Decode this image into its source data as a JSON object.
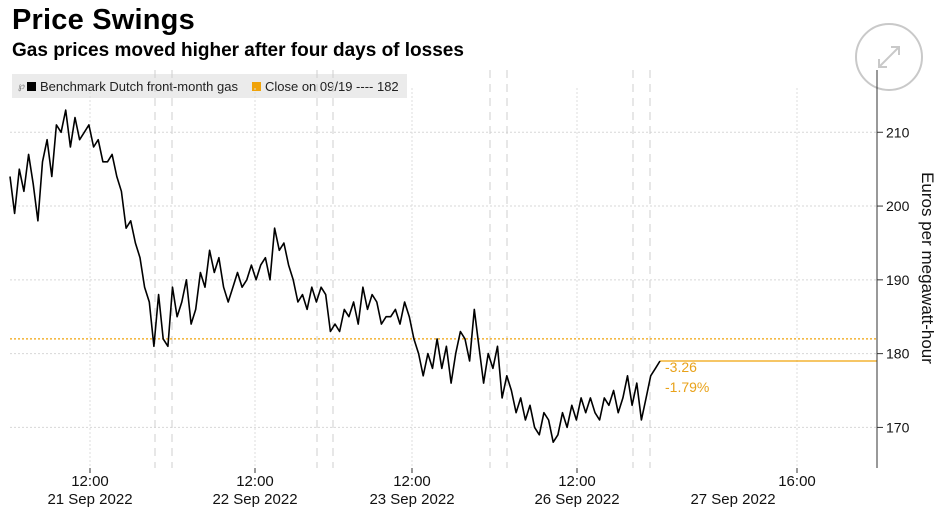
{
  "header": {
    "title": "Price Swings",
    "subtitle": "Gas prices moved higher after four days of losses"
  },
  "legend": {
    "series_label": "Benchmark Dutch front-month gas",
    "close_label": "Close on 09/19 ---- 182",
    "series_color": "#000000",
    "close_color": "#f0a30a"
  },
  "icons": {
    "expand": "expand-arrows-icon"
  },
  "annotations": {
    "change": "-3.26",
    "change_pct": "-1.79%"
  },
  "chart_data": {
    "type": "line",
    "ylabel": "Euros per megawatt-hour",
    "ylim": [
      164.5,
      216
    ],
    "y_ticks": [
      170,
      180,
      190,
      200,
      210
    ],
    "x_ticks": [
      {
        "line1": "12:00",
        "line2": "21 Sep 2022"
      },
      {
        "line1": "12:00",
        "line2": "22 Sep 2022"
      },
      {
        "line1": "12:00",
        "line2": "23 Sep 2022"
      },
      {
        "line1": "12:00",
        "line2": "26 Sep 2022"
      },
      {
        "line1": "",
        "line2": "27 Sep 2022"
      },
      {
        "line1": "16:00",
        "line2": ""
      }
    ],
    "reference_line": {
      "label": "Close on 09/19",
      "value": 182
    },
    "last_value": 179,
    "series": [
      {
        "values": [
          204,
          199,
          205,
          202,
          207,
          203,
          198,
          206,
          209,
          204,
          211,
          210,
          213,
          208,
          212,
          209,
          210,
          211,
          208,
          209,
          206,
          206,
          207,
          204,
          202,
          197,
          198,
          195,
          193,
          189,
          187,
          181,
          188,
          182,
          181,
          189,
          185,
          187,
          190,
          184,
          186,
          191,
          189,
          194,
          191,
          193,
          189,
          187,
          189,
          191,
          189,
          190,
          192,
          190,
          192,
          193,
          190,
          197,
          194,
          195,
          192,
          190,
          187,
          188,
          186,
          189,
          187,
          189,
          188,
          183,
          184,
          183,
          186,
          185,
          187,
          184,
          189,
          186,
          188,
          187,
          184,
          185,
          185,
          186,
          184,
          187,
          185,
          182,
          180,
          177,
          180,
          178,
          182,
          178,
          181,
          176,
          180,
          183,
          182,
          179,
          186,
          181,
          176,
          180,
          178,
          181,
          174,
          177,
          175,
          172,
          174,
          171,
          173,
          170,
          169,
          172,
          171,
          168,
          169,
          172,
          170,
          173,
          171,
          174,
          172,
          174,
          172,
          171,
          174,
          173,
          175,
          172,
          174,
          177,
          173,
          176,
          171,
          174,
          177,
          178,
          179
        ]
      }
    ]
  }
}
